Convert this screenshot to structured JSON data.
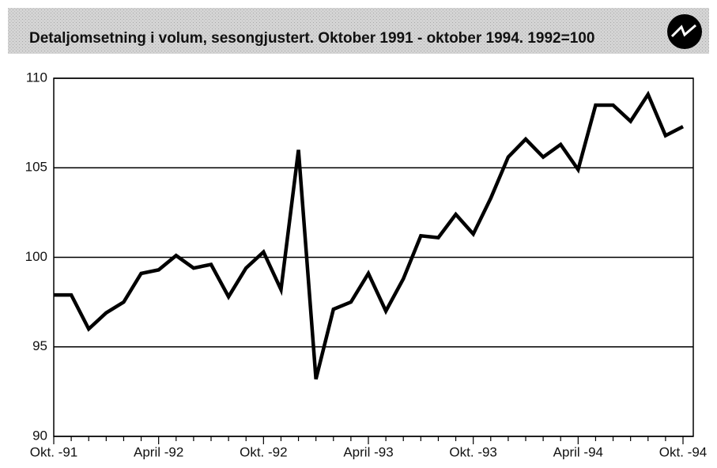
{
  "chart_data": {
    "type": "line",
    "title": "Detaljomsetning i volum, sesongjustert. Oktober 1991 - oktober 1994. 1992=100",
    "categories": [
      "Okt. -91",
      null,
      null,
      null,
      null,
      null,
      "April -92",
      null,
      null,
      null,
      null,
      null,
      "Okt. -92",
      null,
      null,
      null,
      null,
      null,
      "April -93",
      null,
      null,
      null,
      null,
      null,
      "Okt. -93",
      null,
      null,
      null,
      null,
      null,
      "April -94",
      null,
      null,
      null,
      null,
      null,
      "Okt. -94"
    ],
    "series": [
      {
        "name": "Detaljomsetning",
        "color": "#000000",
        "values": [
          97.9,
          97.9,
          96.0,
          96.9,
          97.5,
          99.1,
          99.3,
          100.1,
          99.4,
          99.6,
          97.8,
          99.4,
          100.3,
          98.2,
          106.0,
          93.2,
          97.1,
          97.5,
          99.1,
          97.0,
          98.8,
          101.2,
          101.1,
          102.4,
          101.3,
          103.3,
          105.6,
          106.6,
          105.6,
          106.3,
          104.9,
          108.5,
          108.5,
          107.6,
          109.1,
          106.8,
          107.3
        ]
      }
    ],
    "ylim": [
      90,
      110
    ],
    "yticks": [
      90,
      95,
      100,
      105,
      110
    ],
    "grid": true
  }
}
